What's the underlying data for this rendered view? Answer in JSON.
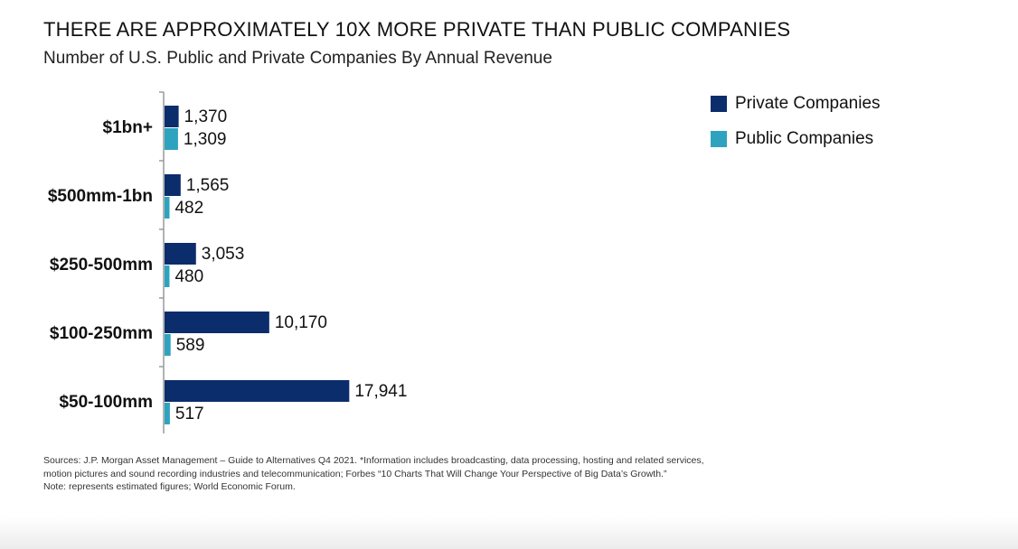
{
  "title": "THERE ARE APPROXIMATELY 10X MORE PRIVATE THAN PUBLIC COMPANIES",
  "subtitle": "Number of U.S. Public and Private Companies By Annual Revenue",
  "colors": {
    "private": "#0c2d6b",
    "public": "#2ea3bf"
  },
  "chart_data": {
    "type": "bar",
    "orientation": "horizontal",
    "title": "THERE ARE APPROXIMATELY 10X MORE PRIVATE THAN PUBLIC COMPANIES",
    "subtitle": "Number of U.S. Public and Private Companies By Annual Revenue",
    "categories": [
      "$1bn+",
      "$500mm-1bn",
      "$250-500mm",
      "$100-250mm",
      "$50-100mm"
    ],
    "series": [
      {
        "name": "Private Companies",
        "values": [
          1370,
          1565,
          3053,
          10170,
          17941
        ],
        "labels": [
          "1,370",
          "1,565",
          "3,053",
          "10,170",
          "17,941"
        ]
      },
      {
        "name": "Public Companies",
        "values": [
          1309,
          482,
          480,
          589,
          517
        ],
        "labels": [
          "1,309",
          "482",
          "480",
          "589",
          "517"
        ]
      }
    ],
    "xlim": [
      0,
      18000
    ],
    "xlabel": "",
    "ylabel": "",
    "grid": false,
    "legend_position": "top-right"
  },
  "legend": [
    {
      "label": "Private Companies"
    },
    {
      "label": "Public Companies"
    }
  ],
  "sources": {
    "line1": "Sources: J.P. Morgan Asset Management – Guide to Alternatives Q4 2021. *Information includes broadcasting, data processing, hosting and related services,",
    "line2": "motion pictures and sound recording industries and telecommunication; Forbes “10 Charts That Will Change Your Perspective of Big Data’s Growth.”",
    "line3": "Note: represents estimated figures; World Economic Forum."
  }
}
